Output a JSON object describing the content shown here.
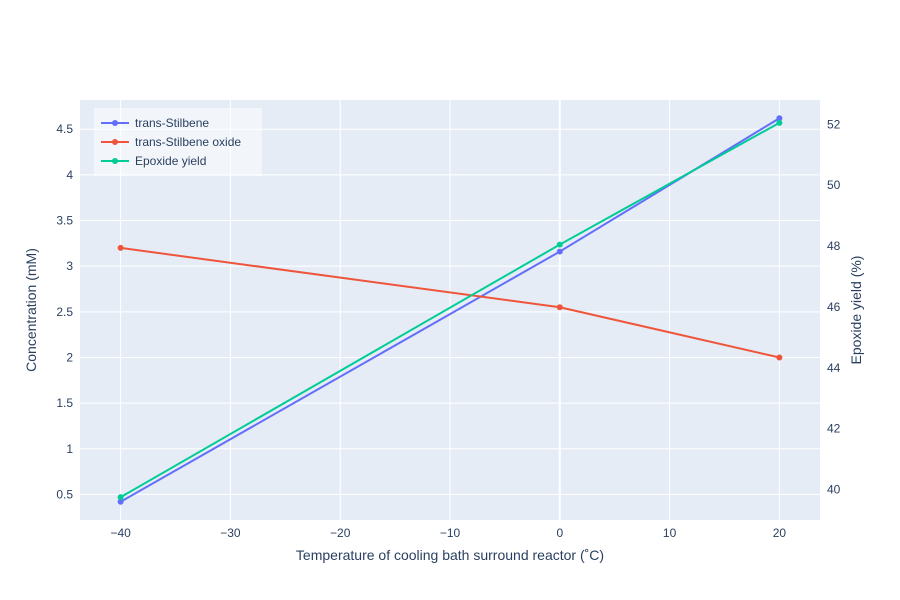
{
  "chart_data": {
    "type": "line",
    "xlabel": "Temperature of cooling bath surround reactor (˚C)",
    "ylabel": "Concentration (mM)",
    "y2label": "Epoxide yield (%)",
    "x": [
      -40,
      0,
      20
    ],
    "xlim": [
      -43.7,
      23.7
    ],
    "ylim": [
      0.22,
      4.82
    ],
    "y2lim": [
      39.0,
      52.8
    ],
    "x_ticks": [
      -40,
      -30,
      -20,
      -10,
      0,
      10,
      20
    ],
    "x_tick_labels": [
      "−40",
      "−30",
      "−20",
      "−10",
      "0",
      "10",
      "20"
    ],
    "y_ticks": [
      0.5,
      1,
      1.5,
      2,
      2.5,
      3,
      3.5,
      4,
      4.5
    ],
    "y_tick_labels": [
      "0.5",
      "1",
      "1.5",
      "2",
      "2.5",
      "3",
      "3.5",
      "4",
      "4.5"
    ],
    "y2_ticks": [
      40,
      42,
      44,
      46,
      48,
      50,
      52
    ],
    "y2_tick_labels": [
      "40",
      "42",
      "44",
      "46",
      "48",
      "50",
      "52"
    ],
    "grid": true,
    "legend": "top-left",
    "series": [
      {
        "name": "trans-Stilbene",
        "axis": "y",
        "color": "#636efa",
        "values": [
          0.42,
          3.16,
          4.62
        ]
      },
      {
        "name": "trans-Stilbene oxide",
        "axis": "y",
        "color": "#ef553b",
        "values": [
          3.2,
          2.55,
          2.0
        ]
      },
      {
        "name": "Epoxide yield",
        "axis": "y2",
        "color": "#00cc96",
        "values": [
          39.75,
          48.05,
          52.05
        ]
      }
    ]
  }
}
